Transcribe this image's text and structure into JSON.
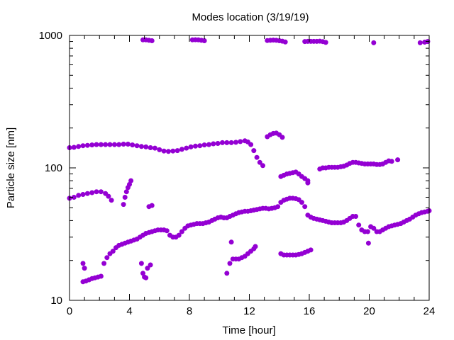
{
  "chart_data": {
    "type": "scatter",
    "title": "Modes location (3/19/19)",
    "xlabel": "Time [hour]",
    "ylabel": "Particle size [nm]",
    "xlim": [
      0,
      24
    ],
    "ylim": [
      10,
      1000
    ],
    "yscale": "log",
    "xticks": [
      0,
      4,
      8,
      12,
      16,
      20,
      24
    ],
    "yticks": [
      10,
      100,
      1000
    ],
    "grid": false,
    "legend": "none",
    "marker_color": "#9400d3",
    "series": [
      {
        "points": [
          [
            0.0,
            142
          ],
          [
            0.3,
            143
          ],
          [
            0.6,
            145
          ],
          [
            0.9,
            147
          ],
          [
            1.2,
            148
          ],
          [
            1.5,
            149
          ],
          [
            1.8,
            150
          ],
          [
            2.1,
            150
          ],
          [
            2.4,
            150
          ],
          [
            2.7,
            150
          ],
          [
            3.0,
            150
          ],
          [
            3.3,
            150
          ],
          [
            3.6,
            151
          ],
          [
            3.9,
            151
          ],
          [
            4.2,
            149
          ],
          [
            4.5,
            147
          ],
          [
            4.8,
            145
          ],
          [
            5.1,
            144
          ],
          [
            5.4,
            142
          ],
          [
            5.7,
            141
          ],
          [
            6.0,
            137
          ],
          [
            6.3,
            134
          ],
          [
            6.6,
            133
          ],
          [
            6.9,
            134
          ],
          [
            7.2,
            135
          ],
          [
            7.5,
            138
          ],
          [
            7.8,
            141
          ],
          [
            8.1,
            144
          ],
          [
            8.4,
            146
          ],
          [
            8.7,
            147
          ],
          [
            9.0,
            149
          ],
          [
            9.3,
            150
          ],
          [
            9.6,
            152
          ],
          [
            9.9,
            153
          ],
          [
            10.2,
            155
          ],
          [
            10.5,
            155
          ],
          [
            10.8,
            155
          ],
          [
            11.1,
            156
          ],
          [
            11.4,
            158
          ],
          [
            11.7,
            160
          ],
          [
            11.9,
            157
          ],
          [
            12.1,
            150
          ],
          [
            12.3,
            135
          ],
          [
            12.5,
            120
          ],
          [
            12.7,
            110
          ],
          [
            12.9,
            104
          ]
        ]
      },
      {
        "points": [
          [
            0.0,
            59
          ],
          [
            0.3,
            60
          ],
          [
            0.6,
            62
          ],
          [
            0.9,
            63
          ],
          [
            1.2,
            64
          ],
          [
            1.5,
            65
          ],
          [
            1.8,
            66
          ],
          [
            2.1,
            66
          ],
          [
            2.4,
            64
          ],
          [
            2.6,
            61
          ],
          [
            2.8,
            57
          ],
          [
            3.6,
            53
          ],
          [
            3.7,
            60
          ],
          [
            3.8,
            66
          ],
          [
            3.9,
            71
          ],
          [
            4.0,
            75
          ],
          [
            4.1,
            80
          ]
        ]
      },
      {
        "points": [
          [
            0.9,
            13.8
          ],
          [
            1.1,
            14.0
          ],
          [
            1.3,
            14.3
          ],
          [
            1.5,
            14.6
          ],
          [
            1.7,
            14.8
          ],
          [
            1.9,
            15.0
          ],
          [
            2.1,
            15.2
          ],
          [
            2.3,
            19
          ],
          [
            2.5,
            21
          ],
          [
            2.7,
            22.5
          ],
          [
            2.9,
            23.5
          ],
          [
            3.1,
            25
          ],
          [
            3.3,
            26
          ],
          [
            3.5,
            26.5
          ],
          [
            3.7,
            27
          ],
          [
            3.9,
            27.5
          ],
          [
            4.1,
            28
          ],
          [
            4.3,
            28.5
          ],
          [
            4.5,
            29
          ],
          [
            4.7,
            30
          ],
          [
            4.9,
            31
          ],
          [
            5.1,
            32
          ],
          [
            5.3,
            32.5
          ],
          [
            5.5,
            33
          ],
          [
            5.7,
            33.5
          ],
          [
            5.9,
            34
          ],
          [
            6.1,
            34
          ],
          [
            6.3,
            34
          ],
          [
            6.5,
            33.5
          ],
          [
            6.7,
            31
          ],
          [
            6.9,
            30
          ],
          [
            7.1,
            30
          ],
          [
            7.3,
            31
          ],
          [
            7.5,
            33
          ],
          [
            7.7,
            35
          ],
          [
            7.9,
            36.5
          ],
          [
            8.1,
            37
          ],
          [
            8.3,
            37.5
          ],
          [
            8.5,
            38
          ],
          [
            8.7,
            38
          ],
          [
            8.9,
            38
          ],
          [
            9.1,
            38.5
          ],
          [
            9.3,
            39
          ],
          [
            9.5,
            40
          ],
          [
            9.7,
            41
          ],
          [
            9.9,
            42
          ],
          [
            10.1,
            42.5
          ],
          [
            10.3,
            42
          ],
          [
            10.5,
            42
          ],
          [
            10.7,
            43
          ],
          [
            10.9,
            44
          ],
          [
            11.1,
            45
          ],
          [
            11.3,
            46
          ],
          [
            11.5,
            46.5
          ],
          [
            11.7,
            47
          ],
          [
            11.9,
            47
          ],
          [
            12.1,
            47.5
          ],
          [
            12.3,
            48
          ],
          [
            12.5,
            48.5
          ],
          [
            12.7,
            49
          ],
          [
            12.9,
            49.5
          ],
          [
            13.1,
            49.5
          ],
          [
            13.3,
            49
          ],
          [
            13.5,
            49.5
          ],
          [
            13.7,
            50
          ],
          [
            13.9,
            51
          ],
          [
            14.1,
            55
          ],
          [
            14.3,
            57
          ],
          [
            14.5,
            58
          ],
          [
            14.7,
            59
          ],
          [
            14.9,
            59
          ],
          [
            15.1,
            58.5
          ],
          [
            15.3,
            57.5
          ],
          [
            15.5,
            55
          ],
          [
            15.7,
            51
          ],
          [
            15.9,
            44
          ],
          [
            16.1,
            42.5
          ],
          [
            16.3,
            41.5
          ],
          [
            16.5,
            41
          ],
          [
            16.7,
            40.5
          ],
          [
            16.9,
            40
          ],
          [
            17.1,
            39.5
          ],
          [
            17.3,
            39
          ],
          [
            17.5,
            38.5
          ],
          [
            17.7,
            38.5
          ],
          [
            17.9,
            38.5
          ],
          [
            18.1,
            38.5
          ],
          [
            18.3,
            39
          ],
          [
            18.5,
            40
          ],
          [
            18.7,
            41.5
          ],
          [
            18.9,
            43
          ],
          [
            19.1,
            43
          ],
          [
            19.3,
            37
          ],
          [
            19.5,
            34
          ],
          [
            19.7,
            33
          ],
          [
            19.9,
            33
          ],
          [
            20.1,
            36
          ],
          [
            20.3,
            35
          ],
          [
            20.5,
            33
          ],
          [
            20.7,
            33
          ],
          [
            20.9,
            34
          ],
          [
            21.1,
            35
          ],
          [
            21.3,
            36
          ],
          [
            21.5,
            36.5
          ],
          [
            21.7,
            37
          ],
          [
            21.9,
            37.5
          ],
          [
            22.1,
            38
          ],
          [
            22.3,
            39
          ],
          [
            22.5,
            40
          ],
          [
            22.7,
            41
          ],
          [
            22.9,
            42.5
          ],
          [
            23.1,
            44
          ],
          [
            23.3,
            45
          ],
          [
            23.5,
            46
          ],
          [
            23.7,
            46.5
          ],
          [
            23.9,
            47
          ],
          [
            24.0,
            47.5
          ],
          [
            19.95,
            27
          ]
        ]
      },
      {
        "points": [
          [
            0.9,
            19
          ],
          [
            1.0,
            17.5
          ],
          [
            4.8,
            19
          ],
          [
            4.9,
            16
          ],
          [
            5.0,
            15
          ],
          [
            5.1,
            14.8
          ],
          [
            5.2,
            17.5
          ],
          [
            5.4,
            18.5
          ],
          [
            5.3,
            51
          ],
          [
            5.5,
            52
          ],
          [
            10.5,
            16
          ],
          [
            10.7,
            19
          ],
          [
            10.9,
            20.5
          ],
          [
            11.1,
            20.5
          ],
          [
            11.3,
            20.5
          ],
          [
            11.5,
            21
          ],
          [
            11.7,
            21.5
          ],
          [
            11.9,
            22.5
          ],
          [
            12.1,
            23.5
          ],
          [
            12.3,
            24.5
          ],
          [
            12.4,
            25.5
          ],
          [
            10.8,
            27.5
          ],
          [
            13.2,
            172
          ],
          [
            13.4,
            178
          ],
          [
            13.6,
            182
          ],
          [
            13.8,
            183
          ],
          [
            14.0,
            178
          ],
          [
            14.2,
            170
          ],
          [
            14.1,
            86
          ],
          [
            14.3,
            88
          ],
          [
            14.5,
            90
          ],
          [
            14.7,
            91
          ],
          [
            14.9,
            92
          ],
          [
            15.1,
            93
          ],
          [
            15.3,
            90
          ],
          [
            15.5,
            86
          ],
          [
            15.7,
            83
          ],
          [
            15.9,
            80
          ],
          [
            15.9,
            77
          ],
          [
            14.1,
            22.5
          ],
          [
            14.3,
            22
          ],
          [
            14.5,
            22
          ],
          [
            14.7,
            22
          ],
          [
            14.9,
            22
          ],
          [
            15.1,
            22
          ],
          [
            15.3,
            22.2
          ],
          [
            15.5,
            22.5
          ],
          [
            15.7,
            23
          ],
          [
            15.9,
            23.5
          ],
          [
            16.1,
            24
          ],
          [
            16.7,
            98
          ],
          [
            16.9,
            100
          ],
          [
            17.1,
            100
          ],
          [
            17.3,
            101
          ],
          [
            17.5,
            101
          ],
          [
            17.7,
            101
          ],
          [
            17.9,
            101
          ],
          [
            18.1,
            102
          ],
          [
            18.3,
            103
          ],
          [
            18.5,
            105
          ],
          [
            18.7,
            108
          ],
          [
            18.9,
            110
          ],
          [
            19.1,
            110
          ],
          [
            19.3,
            109
          ],
          [
            19.5,
            108
          ],
          [
            19.7,
            107
          ],
          [
            19.9,
            107
          ],
          [
            20.1,
            107
          ],
          [
            20.3,
            107
          ],
          [
            20.5,
            106
          ],
          [
            20.7,
            106
          ],
          [
            20.9,
            107
          ],
          [
            21.1,
            110
          ],
          [
            21.3,
            113
          ],
          [
            21.5,
            112
          ],
          [
            21.9,
            115
          ],
          [
            23.4,
            880
          ],
          [
            23.7,
            890
          ],
          [
            23.9,
            900
          ]
        ]
      },
      {
        "points": [
          [
            4.9,
            925
          ],
          [
            5.1,
            925
          ],
          [
            5.3,
            918
          ],
          [
            5.5,
            912
          ],
          [
            8.2,
            925
          ],
          [
            8.4,
            928
          ],
          [
            8.6,
            925
          ],
          [
            8.8,
            918
          ],
          [
            9.0,
            912
          ],
          [
            13.2,
            915
          ],
          [
            13.4,
            918
          ],
          [
            13.6,
            922
          ],
          [
            13.8,
            918
          ],
          [
            14.0,
            912
          ],
          [
            14.2,
            905
          ],
          [
            14.4,
            892
          ],
          [
            15.7,
            900
          ],
          [
            15.9,
            902
          ],
          [
            16.1,
            902
          ],
          [
            16.3,
            902
          ],
          [
            16.5,
            902
          ],
          [
            16.7,
            905
          ],
          [
            16.9,
            898
          ],
          [
            17.1,
            885
          ],
          [
            20.3,
            880
          ]
        ]
      }
    ]
  }
}
